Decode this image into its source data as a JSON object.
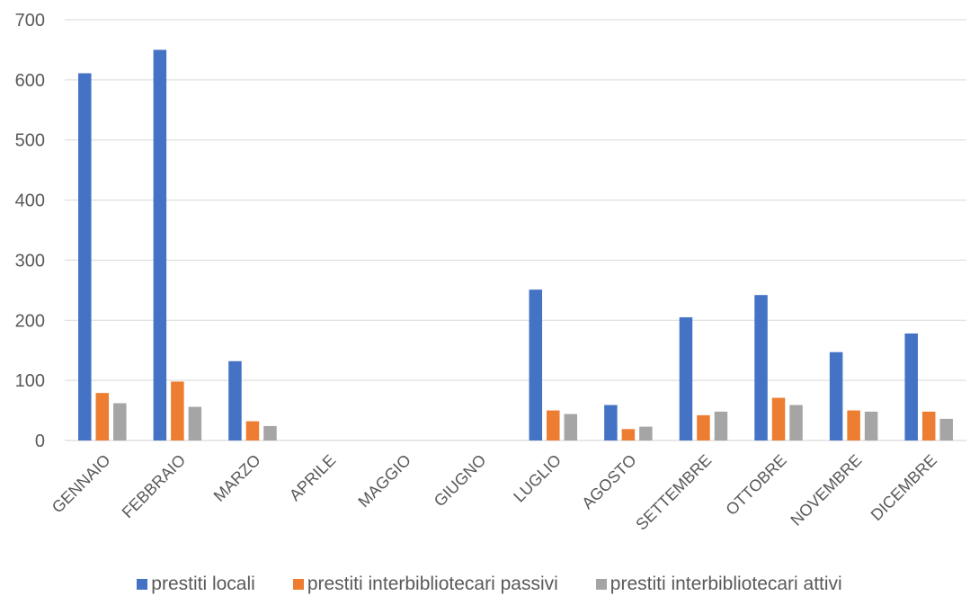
{
  "chart_data": {
    "type": "bar",
    "categories": [
      "GENNAIO",
      "FEBBRAIO",
      "MARZO",
      "APRILE",
      "MAGGIO",
      "GIUGNO",
      "LUGLIO",
      "AGOSTO",
      "SETTEMBRE",
      "OTTOBRE",
      "NOVEMBRE",
      "DICEMBRE"
    ],
    "series": [
      {
        "name": "prestiti locali",
        "color": "#4472C4",
        "values": [
          611,
          650,
          132,
          0,
          0,
          0,
          251,
          59,
          205,
          242,
          147,
          178
        ]
      },
      {
        "name": "prestiti interbibliotecari passivi",
        "color": "#ED7D31",
        "values": [
          79,
          98,
          32,
          0,
          0,
          0,
          50,
          19,
          42,
          71,
          50,
          48
        ]
      },
      {
        "name": "prestiti interbibliotecari attivi",
        "color": "#A5A5A5",
        "values": [
          62,
          56,
          24,
          0,
          0,
          0,
          44,
          23,
          48,
          59,
          48,
          36
        ]
      }
    ],
    "ylim": [
      0,
      700
    ],
    "yticks": [
      0,
      100,
      200,
      300,
      400,
      500,
      600,
      700
    ],
    "grid": true,
    "legend": "bottom",
    "title": "",
    "xlabel": "",
    "ylabel": ""
  }
}
